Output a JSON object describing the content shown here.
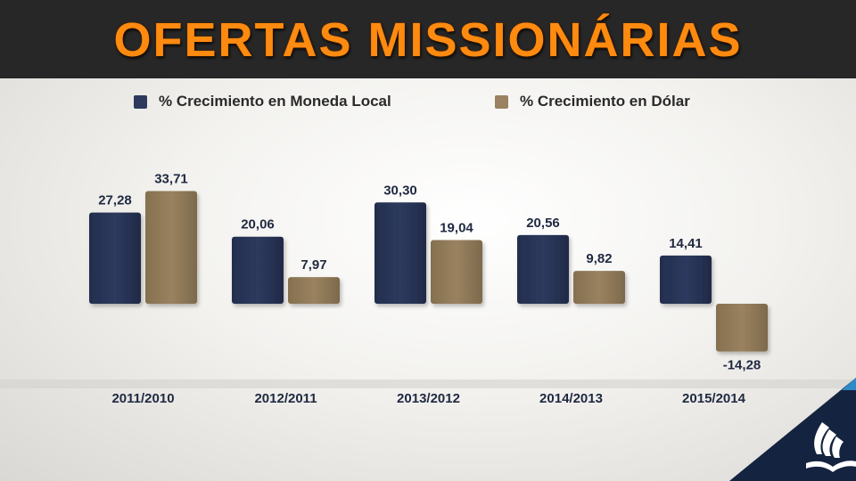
{
  "title": "OFERTAS MISSIONÁRIAS",
  "colors": {
    "header_bg": "#272727",
    "title": "#ff8a10",
    "local": "#2d3a5e",
    "dollar": "#9a8260",
    "logo": "#14233f"
  },
  "logo_icon": "adventist-church-logo-icon",
  "chart_data": {
    "type": "bar",
    "title": "",
    "xlabel": "",
    "ylabel": "",
    "categories": [
      "2011/2010",
      "2012/2011",
      "2013/2012",
      "2014/2013",
      "2015/2014"
    ],
    "series": [
      {
        "name": "% Crecimiento en Moneda Local",
        "values": [
          27.28,
          20.06,
          30.3,
          20.56,
          14.41
        ],
        "labels": [
          "27,28",
          "20,06",
          "30,30",
          "20,56",
          "14,41"
        ]
      },
      {
        "name": "% Crecimiento en Dólar",
        "values": [
          33.71,
          7.97,
          19.04,
          9.82,
          -14.28
        ],
        "labels": [
          "33,71",
          "7,97",
          "19,04",
          "9,82",
          "-14,28"
        ]
      }
    ],
    "ylim": [
      -15,
      34
    ],
    "grid": false,
    "legend": "top",
    "data_labels": true
  }
}
